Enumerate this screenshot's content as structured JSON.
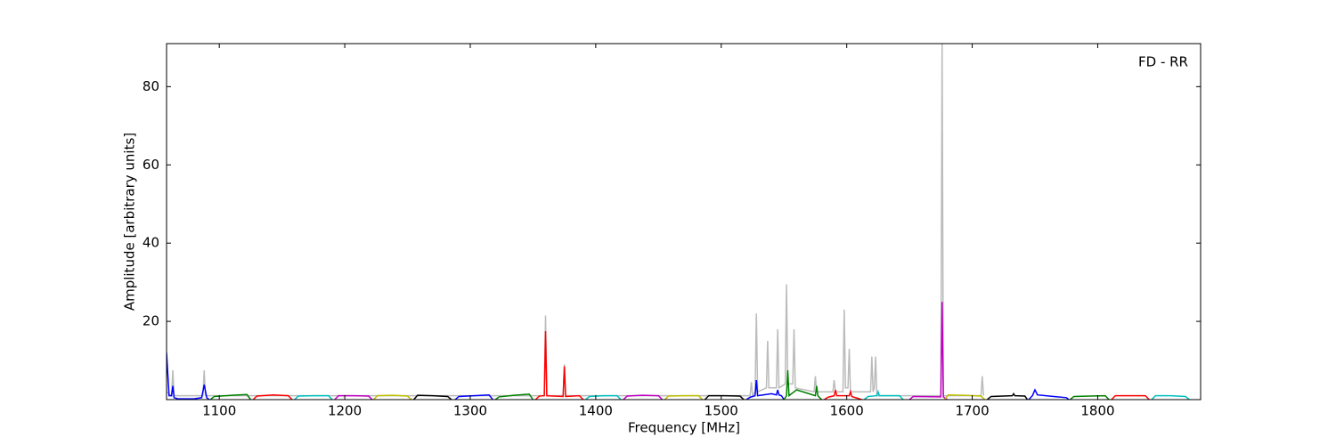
{
  "chart_data": {
    "type": "line",
    "annotation": "FD - RR",
    "xlabel": "Frequency [MHz]",
    "ylabel": "Amplitude [arbitrary units]",
    "xlim": [
      1058,
      1882
    ],
    "ylim": [
      0,
      91
    ],
    "xticks": [
      1100,
      1200,
      1300,
      1400,
      1500,
      1600,
      1700,
      1800
    ],
    "yticks": [
      20,
      40,
      60,
      80
    ],
    "grid": false,
    "series": [
      {
        "color": "#bbbbbb",
        "x": [
          1058,
          1062,
          1063,
          1064,
          1087,
          1088,
          1089,
          1359,
          1360,
          1361,
          1374,
          1375,
          1376,
          1523,
          1524,
          1525,
          1527,
          1528,
          1529,
          1536,
          1537,
          1538,
          1544,
          1545,
          1546,
          1551,
          1552,
          1553,
          1557,
          1558,
          1559,
          1574,
          1575,
          1576,
          1589,
          1590,
          1591,
          1597,
          1598,
          1599,
          1601,
          1602,
          1603,
          1619,
          1620,
          1621,
          1622,
          1623,
          1624,
          1675,
          1676,
          1677,
          1707,
          1708,
          1709
        ],
        "values": [
          2,
          1,
          7.5,
          1,
          1,
          7.5,
          1,
          1,
          21.5,
          1,
          1,
          9,
          1,
          1,
          4.5,
          1,
          2,
          22,
          2,
          3,
          15,
          3,
          3,
          18,
          3,
          4,
          29.5,
          4,
          4,
          18,
          3,
          2,
          6,
          2,
          2,
          5,
          2,
          2,
          23,
          3,
          3,
          13,
          2,
          2,
          11,
          2,
          3,
          11,
          1,
          1,
          91,
          1,
          1,
          6,
          1
        ]
      },
      {
        "color": "#0000ff",
        "x": [
          1058,
          1060,
          1062,
          1063,
          1064,
          1067,
          1080,
          1086,
          1088,
          1090,
          1092
        ],
        "values": [
          12,
          1,
          1,
          3.5,
          0.5,
          0.2,
          0.2,
          0.5,
          3.8,
          0.5,
          0
        ]
      },
      {
        "color": "#008000",
        "x": [
          1093,
          1096,
          1110,
          1122,
          1125
        ],
        "values": [
          0,
          0.8,
          1.1,
          1.3,
          0
        ]
      },
      {
        "color": "#ff0000",
        "x": [
          1127,
          1130,
          1143,
          1155,
          1158
        ],
        "values": [
          0,
          0.9,
          1.2,
          1,
          0
        ]
      },
      {
        "color": "#00bfbf",
        "x": [
          1160,
          1163,
          1175,
          1187,
          1190
        ],
        "values": [
          0,
          0.9,
          1,
          1,
          0
        ]
      },
      {
        "color": "#bf00bf",
        "x": [
          1192,
          1195,
          1207,
          1219,
          1222
        ],
        "values": [
          0,
          1,
          1,
          0.9,
          0
        ]
      },
      {
        "color": "#bfbf00",
        "x": [
          1223,
          1226,
          1238,
          1250,
          1253
        ],
        "values": [
          0,
          1,
          1.1,
          0.9,
          0
        ]
      },
      {
        "color": "#000000",
        "x": [
          1255,
          1258,
          1270,
          1282,
          1285
        ],
        "values": [
          0,
          1.1,
          1,
          0.8,
          0
        ]
      },
      {
        "color": "#0000ff",
        "x": [
          1288,
          1291,
          1303,
          1315,
          1318
        ],
        "values": [
          0,
          0.8,
          1,
          1.2,
          0
        ]
      },
      {
        "color": "#008000",
        "x": [
          1320,
          1323,
          1335,
          1347,
          1350
        ],
        "values": [
          0,
          0.7,
          1.1,
          1.4,
          0
        ]
      },
      {
        "color": "#ff0000",
        "x": [
          1352,
          1355,
          1359,
          1360,
          1361,
          1374,
          1375,
          1376,
          1387,
          1390
        ],
        "values": [
          0,
          0.9,
          1,
          17.5,
          1,
          0.8,
          8.5,
          0.8,
          1,
          0
        ]
      },
      {
        "color": "#00bfbf",
        "x": [
          1392,
          1395,
          1406,
          1417,
          1420
        ],
        "values": [
          0,
          0.8,
          1,
          1,
          0
        ]
      },
      {
        "color": "#bf00bf",
        "x": [
          1422,
          1425,
          1437,
          1450,
          1453
        ],
        "values": [
          0,
          0.9,
          1.1,
          1,
          0
        ]
      },
      {
        "color": "#bfbf00",
        "x": [
          1455,
          1458,
          1470,
          1482,
          1485
        ],
        "values": [
          0,
          0.9,
          1,
          1,
          0
        ]
      },
      {
        "color": "#000000",
        "x": [
          1487,
          1490,
          1502,
          1515,
          1518
        ],
        "values": [
          0,
          1,
          1,
          0.9,
          0
        ]
      },
      {
        "color": "#0000ff",
        "x": [
          1520,
          1523,
          1527,
          1528,
          1529,
          1540,
          1544,
          1545,
          1546,
          1548,
          1550
        ],
        "values": [
          0,
          0.6,
          1,
          5,
          1,
          1.5,
          1.2,
          2.5,
          1.2,
          1,
          0
        ]
      },
      {
        "color": "#008000",
        "x": [
          1550,
          1552,
          1553,
          1554,
          1560,
          1575,
          1576,
          1577,
          1580
        ],
        "values": [
          0,
          1,
          7.5,
          1,
          2.5,
          1,
          3.5,
          1,
          0
        ]
      },
      {
        "color": "#ff0000",
        "x": [
          1582,
          1585,
          1590,
          1591,
          1592,
          1602,
          1603,
          1604,
          1612
        ],
        "values": [
          0,
          0.6,
          1,
          2.5,
          1,
          1,
          2,
          0.8,
          0
        ]
      },
      {
        "color": "#00bfbf",
        "x": [
          1614,
          1617,
          1624,
          1625,
          1626,
          1642,
          1645
        ],
        "values": [
          0,
          0.8,
          1,
          2,
          1,
          1,
          0
        ]
      },
      {
        "color": "#bf00bf",
        "x": [
          1650,
          1653,
          1674,
          1675,
          1676,
          1677,
          1680
        ],
        "values": [
          0,
          0.8,
          0.7,
          0.7,
          25,
          0.7,
          0
        ]
      },
      {
        "color": "#bfbf00",
        "x": [
          1678,
          1681,
          1694,
          1707,
          1710
        ],
        "values": [
          0,
          1.2,
          1.1,
          0.9,
          0
        ]
      },
      {
        "color": "#000000",
        "x": [
          1712,
          1715,
          1732,
          1733,
          1734,
          1742,
          1744
        ],
        "values": [
          0,
          0.8,
          1,
          1.5,
          1,
          0.9,
          0
        ]
      },
      {
        "color": "#0000ff",
        "x": [
          1745,
          1748,
          1750,
          1752,
          1765,
          1775,
          1777
        ],
        "values": [
          0,
          1,
          2.5,
          1.2,
          0.8,
          0.5,
          0
        ]
      },
      {
        "color": "#008000",
        "x": [
          1778,
          1781,
          1794,
          1806,
          1809
        ],
        "values": [
          0,
          0.8,
          0.9,
          1,
          0
        ]
      },
      {
        "color": "#ff0000",
        "x": [
          1811,
          1814,
          1826,
          1838,
          1841
        ],
        "values": [
          0,
          1,
          1,
          1,
          0
        ]
      },
      {
        "color": "#00bfbf",
        "x": [
          1843,
          1846,
          1858,
          1870,
          1873
        ],
        "values": [
          0,
          1,
          1,
          0.8,
          0
        ]
      }
    ]
  }
}
